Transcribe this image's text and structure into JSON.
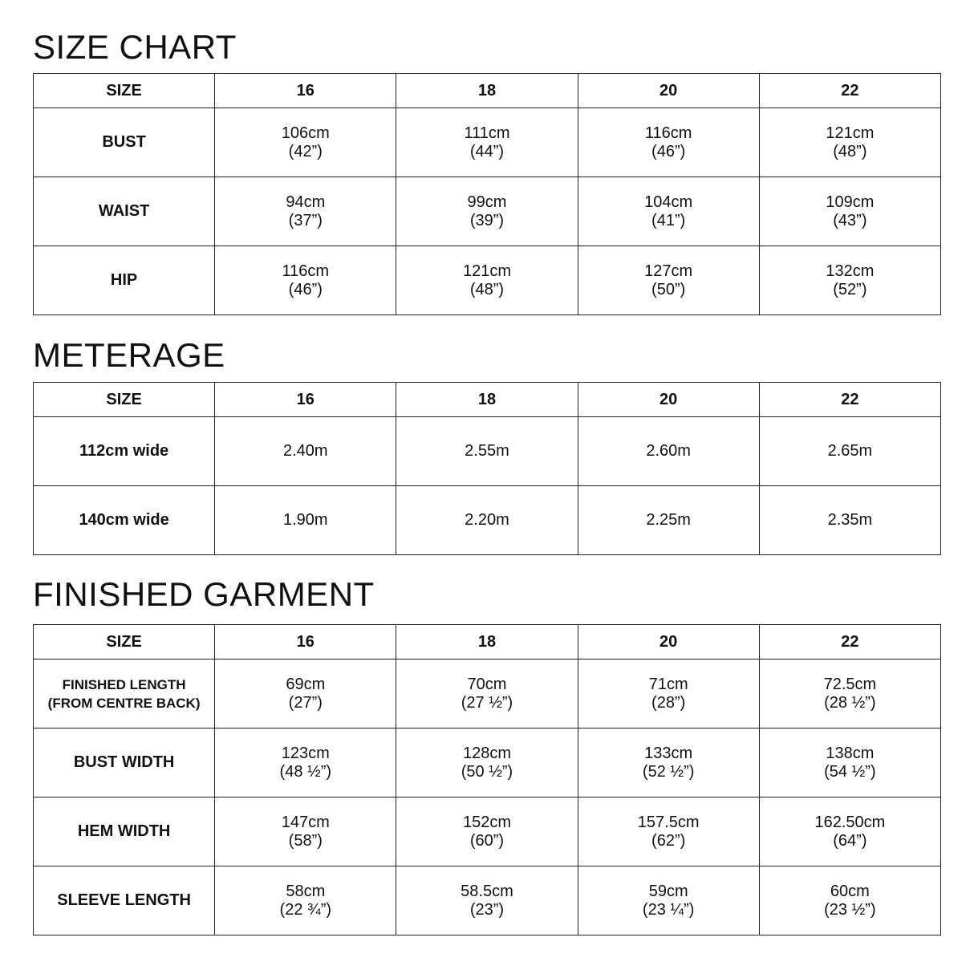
{
  "sections": [
    {
      "title": "SIZE CHART",
      "header": [
        "SIZE",
        "16",
        "18",
        "20",
        "22"
      ],
      "rows": [
        {
          "label": [
            "BUST"
          ],
          "cells": [
            [
              "106cm",
              "(42”)"
            ],
            [
              "111cm",
              "(44”)"
            ],
            [
              "116cm",
              "(46”)"
            ],
            [
              "121cm",
              "(48”)"
            ]
          ]
        },
        {
          "label": [
            "WAIST"
          ],
          "cells": [
            [
              "94cm",
              "(37”)"
            ],
            [
              "99cm",
              "(39”)"
            ],
            [
              "104cm",
              "(41”)"
            ],
            [
              "109cm",
              "(43”)"
            ]
          ]
        },
        {
          "label": [
            "HIP"
          ],
          "cells": [
            [
              "116cm",
              "(46”)"
            ],
            [
              "121cm",
              "(48”)"
            ],
            [
              "127cm",
              "(50”)"
            ],
            [
              "132cm",
              "(52”)"
            ]
          ]
        }
      ]
    },
    {
      "title": "METERAGE",
      "header": [
        "SIZE",
        "16",
        "18",
        "20",
        "22"
      ],
      "rows": [
        {
          "label": [
            "112cm wide"
          ],
          "cells": [
            [
              "2.40m"
            ],
            [
              "2.55m"
            ],
            [
              "2.60m"
            ],
            [
              "2.65m"
            ]
          ]
        },
        {
          "label": [
            "140cm wide"
          ],
          "cells": [
            [
              "1.90m"
            ],
            [
              "2.20m"
            ],
            [
              "2.25m"
            ],
            [
              "2.35m"
            ]
          ]
        }
      ]
    },
    {
      "title": "FINISHED GARMENT",
      "header": [
        "SIZE",
        "16",
        "18",
        "20",
        "22"
      ],
      "rows": [
        {
          "label": [
            "FINISHED LENGTH",
            "(FROM CENTRE BACK)"
          ],
          "cells": [
            [
              "69cm",
              "(27”)"
            ],
            [
              "70cm",
              "(27 ½”)"
            ],
            [
              "71cm",
              "(28”)"
            ],
            [
              "72.5cm",
              "(28 ½”)"
            ]
          ]
        },
        {
          "label": [
            "BUST WIDTH"
          ],
          "cells": [
            [
              "123cm",
              "(48 ½”)"
            ],
            [
              "128cm",
              "(50 ½”)"
            ],
            [
              "133cm",
              "(52 ½”)"
            ],
            [
              "138cm",
              "(54 ½”)"
            ]
          ]
        },
        {
          "label": [
            "HEM WIDTH"
          ],
          "cells": [
            [
              "147cm",
              "(58”)"
            ],
            [
              "152cm",
              "(60”)"
            ],
            [
              "157.5cm",
              "(62”)"
            ],
            [
              "162.50cm",
              "(64”)"
            ]
          ]
        },
        {
          "label": [
            "SLEEVE LENGTH"
          ],
          "cells": [
            [
              "58cm",
              "(22 ¾”)"
            ],
            [
              "58.5cm",
              "(23”)"
            ],
            [
              "59cm",
              "(23 ¼”)"
            ],
            [
              "60cm",
              "(23 ½”)"
            ]
          ]
        }
      ]
    }
  ]
}
